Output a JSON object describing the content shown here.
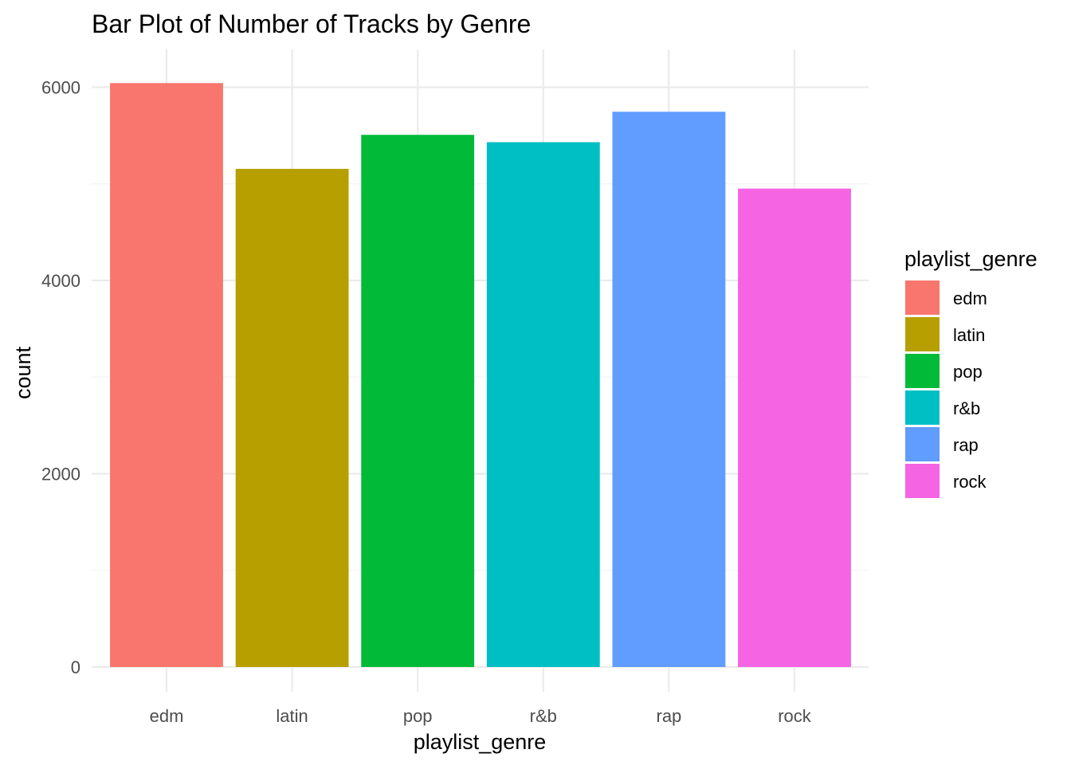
{
  "chart_data": {
    "type": "bar",
    "title": "Bar Plot of Number of Tracks by Genre",
    "xlabel": "playlist_genre",
    "ylabel": "count",
    "categories": [
      "edm",
      "latin",
      "pop",
      "r&b",
      "rap",
      "rock"
    ],
    "values": [
      6043,
      5155,
      5507,
      5431,
      5746,
      4951
    ],
    "colors": [
      "#F8766D",
      "#B79F00",
      "#00BA38",
      "#00BFC4",
      "#619CFF",
      "#F564E3"
    ],
    "ylim": [
      0,
      6350
    ],
    "yticks": [
      0,
      2000,
      4000,
      6000
    ],
    "grid": true,
    "legend": {
      "title": "playlist_genre",
      "placement": "right",
      "entries": [
        "edm",
        "latin",
        "pop",
        "r&b",
        "rap",
        "rock"
      ]
    }
  }
}
